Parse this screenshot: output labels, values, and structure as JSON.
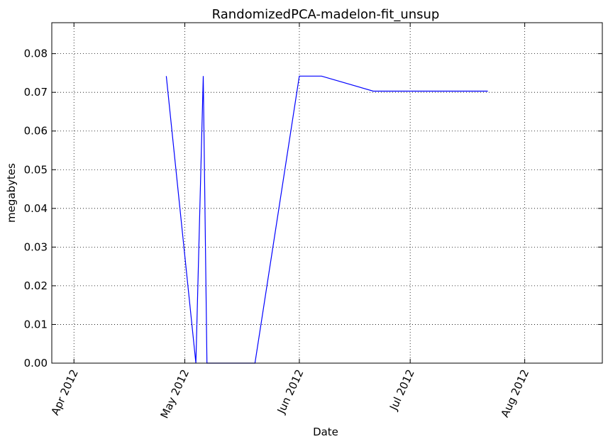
{
  "chart_data": {
    "type": "line",
    "title": "RandomizedPCA-madelon-fit_unsup",
    "xlabel": "Date",
    "ylabel": "megabytes",
    "xlim": [
      "2012-03-26",
      "2012-08-22"
    ],
    "ylim": [
      0,
      0.088
    ],
    "grid": true,
    "x_ticks": [
      {
        "value": "2012-04-01",
        "label": "Apr 2012"
      },
      {
        "value": "2012-05-01",
        "label": "May 2012"
      },
      {
        "value": "2012-06-01",
        "label": "Jun 2012"
      },
      {
        "value": "2012-07-01",
        "label": "Jul 2012"
      },
      {
        "value": "2012-08-01",
        "label": "Aug 2012"
      }
    ],
    "y_ticks": [
      {
        "value": 0.0,
        "label": "0.00"
      },
      {
        "value": 0.01,
        "label": "0.01"
      },
      {
        "value": 0.02,
        "label": "0.02"
      },
      {
        "value": 0.03,
        "label": "0.03"
      },
      {
        "value": 0.04,
        "label": "0.04"
      },
      {
        "value": 0.05,
        "label": "0.05"
      },
      {
        "value": 0.06,
        "label": "0.06"
      },
      {
        "value": 0.07,
        "label": "0.07"
      },
      {
        "value": 0.08,
        "label": "0.08"
      }
    ],
    "series": [
      {
        "color": "#0000ff",
        "x": [
          "2012-04-26",
          "2012-05-04",
          "2012-05-06",
          "2012-05-07",
          "2012-05-20",
          "2012-06-01",
          "2012-06-07",
          "2012-06-21",
          "2012-07-22"
        ],
        "y": [
          0.0742,
          0.0,
          0.0742,
          0.0,
          0.0,
          0.0742,
          0.0742,
          0.0703,
          0.0703
        ]
      }
    ]
  }
}
